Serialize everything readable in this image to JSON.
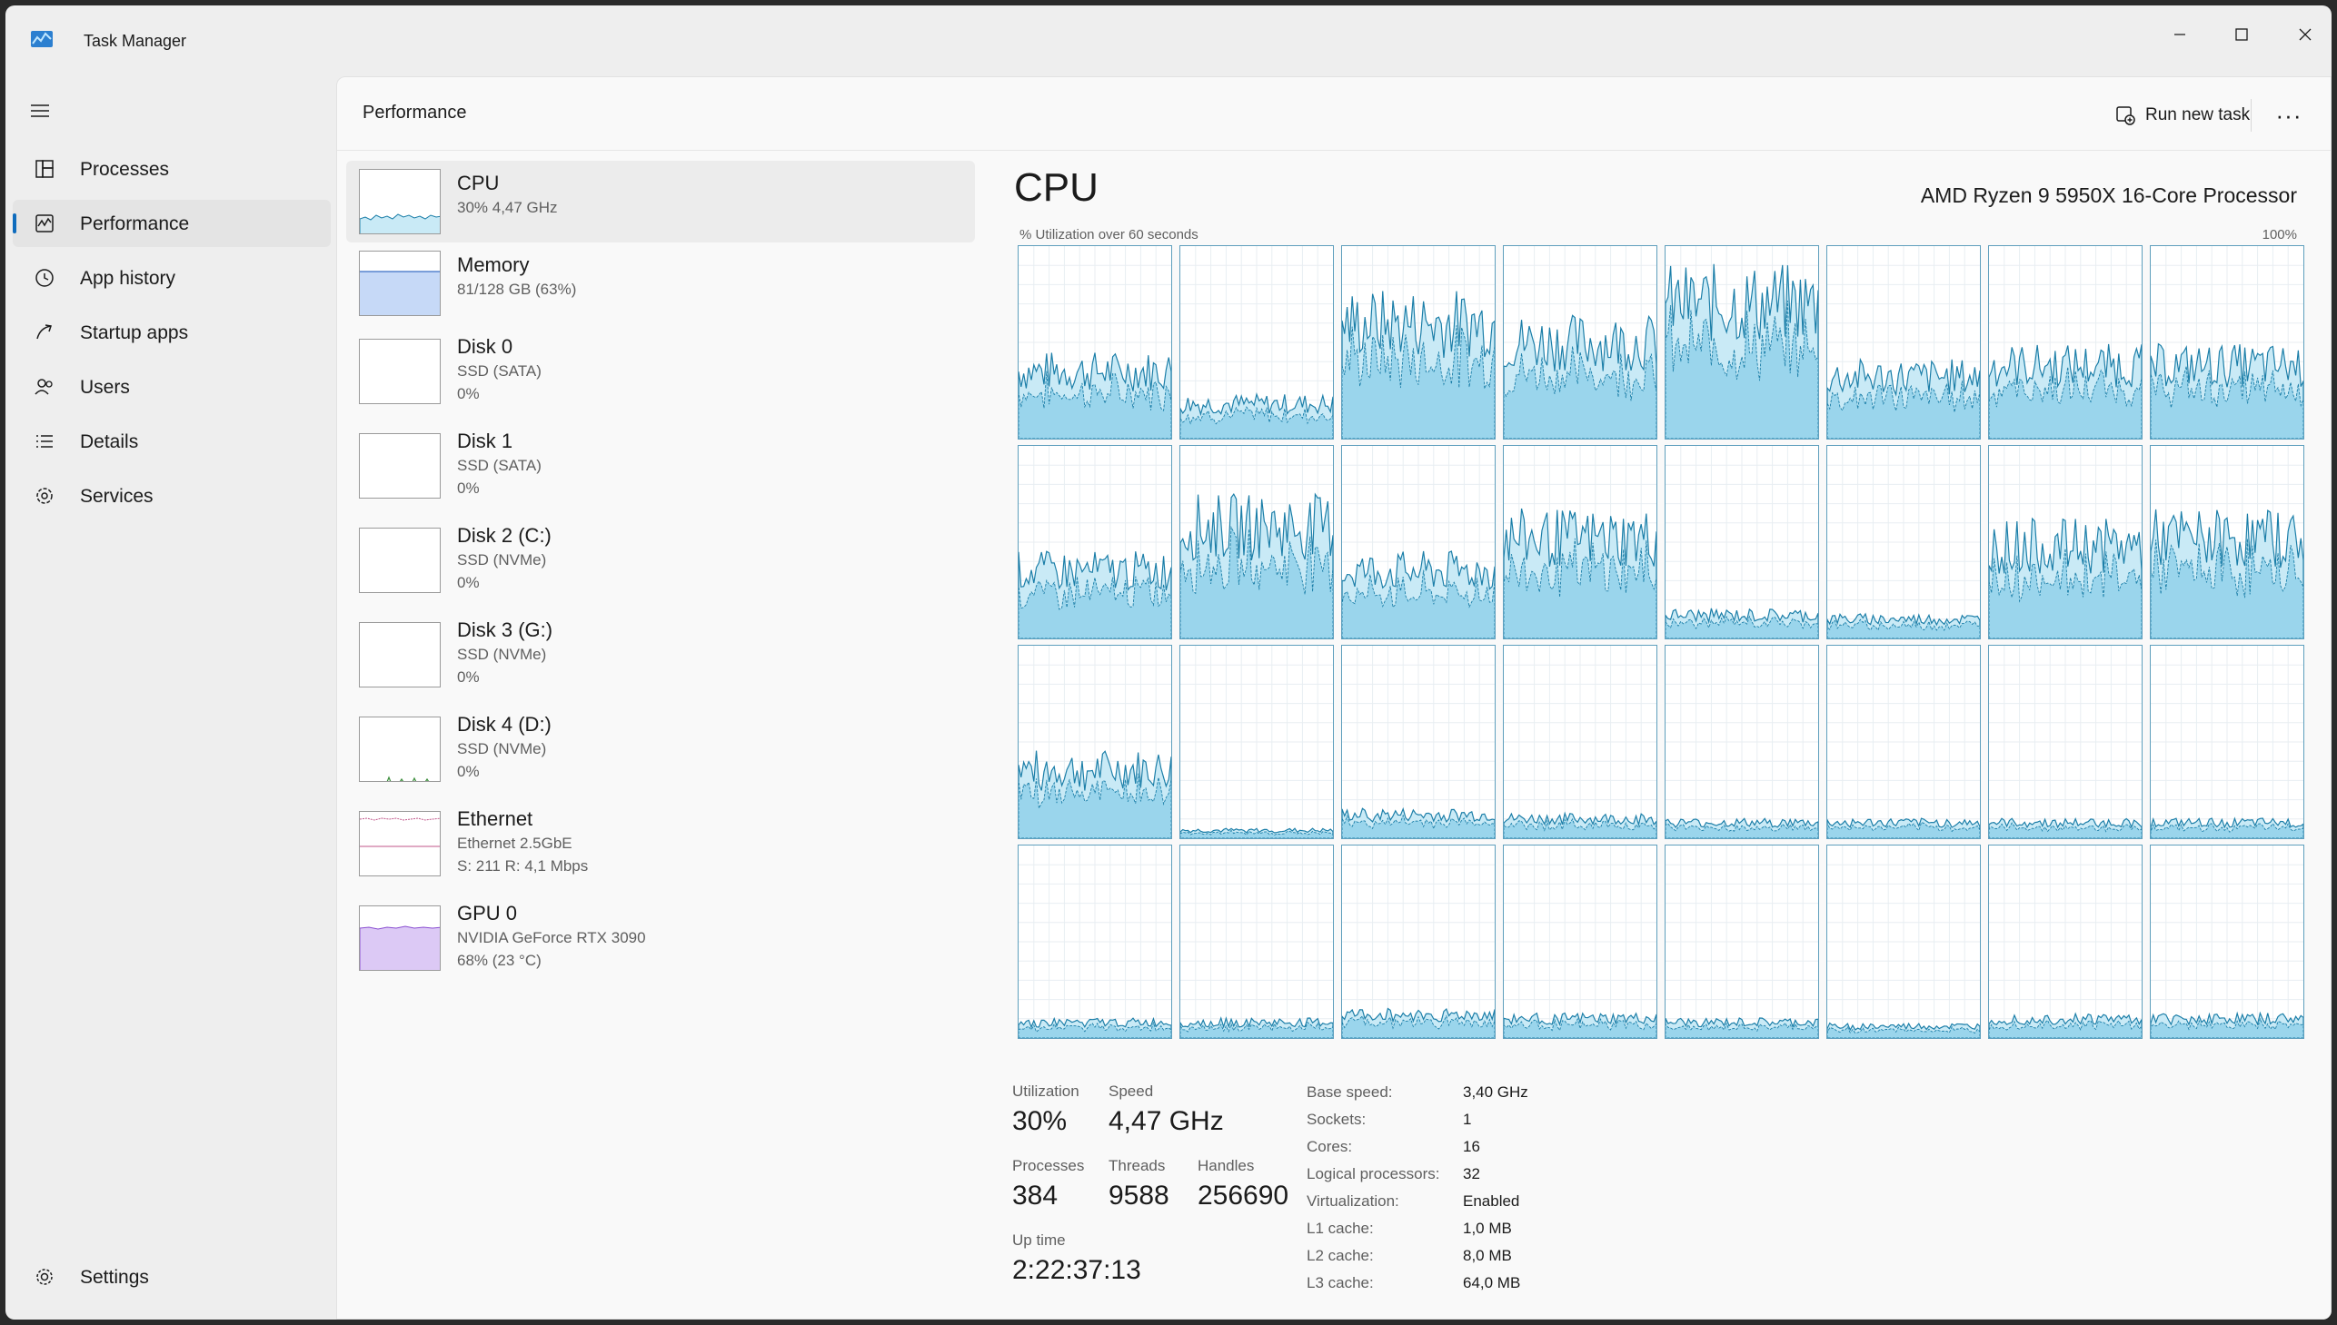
{
  "window": {
    "title": "Task Manager"
  },
  "sidebar": {
    "items": [
      {
        "label": "Processes",
        "icon": "processes-icon"
      },
      {
        "label": "Performance",
        "icon": "performance-icon",
        "active": true
      },
      {
        "label": "App history",
        "icon": "app-history-icon"
      },
      {
        "label": "Startup apps",
        "icon": "startup-apps-icon"
      },
      {
        "label": "Users",
        "icon": "users-icon"
      },
      {
        "label": "Details",
        "icon": "details-icon"
      },
      {
        "label": "Services",
        "icon": "services-icon"
      }
    ],
    "settings_label": "Settings"
  },
  "header": {
    "title": "Performance",
    "run_new_task": "Run new task",
    "more": "···"
  },
  "resources": [
    {
      "name": "CPU",
      "sub1": "30%  4,47 GHz",
      "sub2": ""
    },
    {
      "name": "Memory",
      "sub1": "81/128 GB (63%)",
      "sub2": ""
    },
    {
      "name": "Disk 0",
      "sub1": "SSD (SATA)",
      "sub2": "0%"
    },
    {
      "name": "Disk 1",
      "sub1": "SSD (SATA)",
      "sub2": "0%"
    },
    {
      "name": "Disk 2 (C:)",
      "sub1": "SSD (NVMe)",
      "sub2": "0%"
    },
    {
      "name": "Disk 3 (G:)",
      "sub1": "SSD (NVMe)",
      "sub2": "0%"
    },
    {
      "name": "Disk 4 (D:)",
      "sub1": "SSD (NVMe)",
      "sub2": "0%"
    },
    {
      "name": "Ethernet",
      "sub1": "Ethernet 2.5GbE",
      "sub2": "S: 211  R: 4,1 Mbps"
    },
    {
      "name": "GPU 0",
      "sub1": "NVIDIA GeForce RTX 3090",
      "sub2": "68% (23 °C)"
    }
  ],
  "cpu": {
    "heading": "CPU",
    "model": "AMD Ryzen 9 5950X 16-Core Processor",
    "axis_left": "% Utilization over 60 seconds",
    "axis_right": "100%",
    "core_levels": [
      35,
      18,
      60,
      50,
      70,
      32,
      38,
      38,
      35,
      58,
      35,
      52,
      12,
      10,
      48,
      52,
      35,
      4,
      12,
      10,
      8,
      8,
      8,
      8,
      8,
      8,
      12,
      10,
      8,
      6,
      10,
      10
    ],
    "colors": {
      "line": "#1b7ea8",
      "fill": "#9ad5ec",
      "fill_light": "#c9eaf6",
      "border": "#5e9fbd"
    }
  },
  "stats": {
    "utilization_label": "Utilization",
    "utilization_value": "30%",
    "speed_label": "Speed",
    "speed_value": "4,47 GHz",
    "processes_label": "Processes",
    "processes_value": "384",
    "threads_label": "Threads",
    "threads_value": "9588",
    "handles_label": "Handles",
    "handles_value": "256690",
    "uptime_label": "Up time",
    "uptime_value": "2:22:37:13"
  },
  "specs": [
    {
      "k": "Base speed:",
      "v": "3,40 GHz"
    },
    {
      "k": "Sockets:",
      "v": "1"
    },
    {
      "k": "Cores:",
      "v": "16"
    },
    {
      "k": "Logical processors:",
      "v": "32"
    },
    {
      "k": "Virtualization:",
      "v": "Enabled"
    },
    {
      "k": "L1 cache:",
      "v": "1,0 MB"
    },
    {
      "k": "L2 cache:",
      "v": "8,0 MB"
    },
    {
      "k": "L3 cache:",
      "v": "64,0 MB"
    }
  ]
}
